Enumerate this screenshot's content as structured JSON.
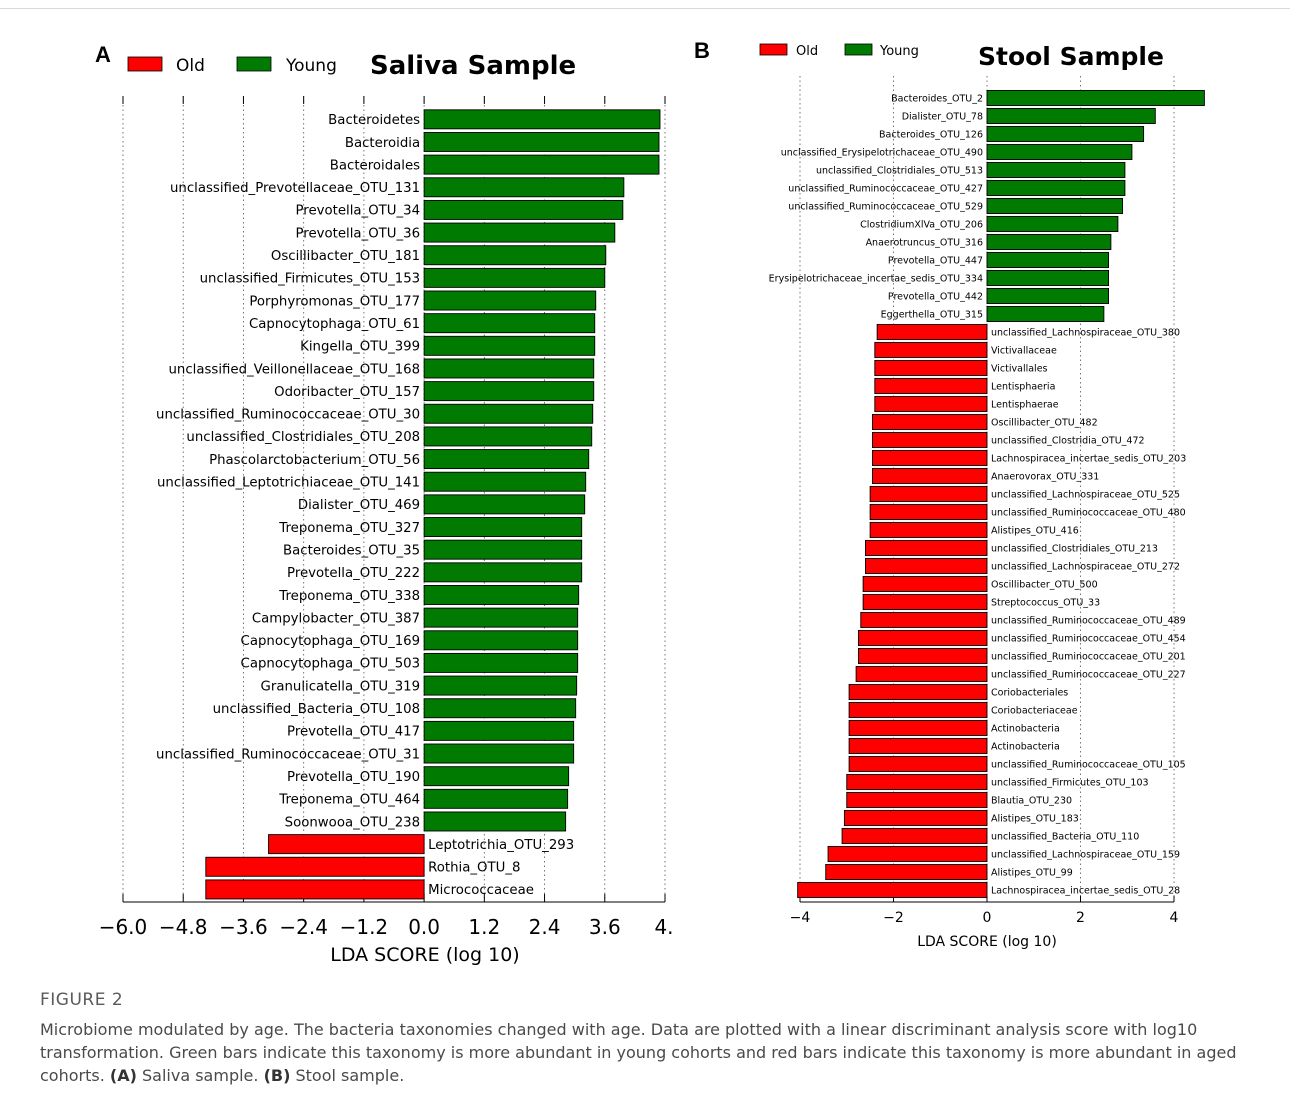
{
  "figure": {
    "label": "FIGURE 2",
    "caption_main": "Microbiome modulated by age. The bacteria taxonomies changed with age. Data are plotted with a linear discriminant analysis score with log10 transformation. Green bars indicate this taxonomy is more abundant in young cohorts and red bars indicate this taxonomy is more abundant in aged cohorts.",
    "caption_a_label": "(A)",
    "caption_a_text": "Saliva sample.",
    "caption_b_label": "(B)",
    "caption_b_text": "Stool sample."
  },
  "colors": {
    "old": "#ff0000",
    "young": "#007a00"
  },
  "chart_data": [
    {
      "type": "bar",
      "orientation": "horizontal",
      "panel": "A",
      "title": "Saliva Sample",
      "xlabel": "LDA SCORE (log 10)",
      "xlim": [
        -6.0,
        4.8
      ],
      "xticks": [
        -6.0,
        -4.8,
        -3.6,
        -2.4,
        -1.2,
        0.0,
        1.2,
        2.4,
        3.6,
        4.8
      ],
      "xtick_labels": [
        "−6.0",
        "−4.8",
        "−3.6",
        "−2.4",
        "−1.2",
        "0.0",
        "1.2",
        "2.4",
        "3.6",
        "4. "
      ],
      "legend": [
        {
          "name": "Old",
          "color": "#ff0000"
        },
        {
          "name": "Young",
          "color": "#007a00"
        }
      ],
      "legend_position": "top-left",
      "grid": "vertical dotted",
      "categories": [
        "Bacteroidetes",
        "Bacteroidia",
        "Bacteroidales",
        "unclassified_Prevotellaceae_OTU_131",
        "Prevotella_OTU_34",
        "Prevotella_OTU_36",
        "Oscillibacter_OTU_181",
        "unclassified_Firmicutes_OTU_153",
        "Porphyromonas_OTU_177",
        "Capnocytophaga_OTU_61",
        "Kingella_OTU_399",
        "unclassified_Veillonellaceae_OTU_168",
        "Odoribacter_OTU_157",
        "unclassified_Ruminococcaceae_OTU_30",
        "unclassified_Clostridiales_OTU_208",
        "Phascolarctobacterium_OTU_56",
        "unclassified_Leptotrichiaceae_OTU_141",
        "Dialister_OTU_469",
        "Treponema_OTU_327",
        "Bacteroides_OTU_35",
        "Prevotella_OTU_222",
        "Treponema_OTU_338",
        "Campylobacter_OTU_387",
        "Capnocytophaga_OTU_169",
        "Capnocytophaga_OTU_503",
        "Granulicatella_OTU_319",
        "unclassified_Bacteria_OTU_108",
        "Prevotella_OTU_417",
        "unclassified_Ruminococcaceae_OTU_31",
        "Prevotella_OTU_190",
        "Treponema_OTU_464",
        "Soonwooa_OTU_238",
        "Leptotrichia_OTU_293",
        "Rothia_OTU_8",
        "Micrococcaceae"
      ],
      "values": [
        4.7,
        4.68,
        4.68,
        3.98,
        3.96,
        3.8,
        3.62,
        3.6,
        3.42,
        3.4,
        3.4,
        3.38,
        3.38,
        3.36,
        3.34,
        3.28,
        3.22,
        3.2,
        3.14,
        3.14,
        3.14,
        3.08,
        3.06,
        3.06,
        3.06,
        3.04,
        3.02,
        2.98,
        2.98,
        2.88,
        2.86,
        2.82,
        -3.1,
        -4.35,
        -4.35
      ],
      "groups": [
        "Young",
        "Young",
        "Young",
        "Young",
        "Young",
        "Young",
        "Young",
        "Young",
        "Young",
        "Young",
        "Young",
        "Young",
        "Young",
        "Young",
        "Young",
        "Young",
        "Young",
        "Young",
        "Young",
        "Young",
        "Young",
        "Young",
        "Young",
        "Young",
        "Young",
        "Young",
        "Young",
        "Young",
        "Young",
        "Young",
        "Young",
        "Young",
        "Old",
        "Old",
        "Old"
      ]
    },
    {
      "type": "bar",
      "orientation": "horizontal",
      "panel": "B",
      "title": "Stool Sample",
      "xlabel": "LDA SCORE (log 10)",
      "xlim": [
        -4.2,
        4.7
      ],
      "xticks": [
        -4,
        -2,
        0,
        2,
        4
      ],
      "xtick_labels": [
        "−4",
        "−2",
        "0",
        "2",
        "4"
      ],
      "legend": [
        {
          "name": "Old",
          "color": "#ff0000"
        },
        {
          "name": "Young",
          "color": "#007a00"
        }
      ],
      "legend_position": "top-left",
      "grid": "vertical dotted",
      "categories": [
        "Bacteroides_OTU_2",
        "Dialister_OTU_78",
        "Bacteroides_OTU_126",
        "unclassified_Erysipelotrichaceae_OTU_490",
        "unclassified_Clostridiales_OTU_513",
        "unclassified_Ruminococcaceae_OTU_427",
        "unclassified_Ruminococcaceae_OTU_529",
        "ClostridiumXlVa_OTU_206",
        "Anaerotruncus_OTU_316",
        "Prevotella_OTU_447",
        "Erysipelotrichaceae_incertae_sedis_OTU_334",
        "Prevotella_OTU_442",
        "Eggerthella_OTU_315",
        "unclassified_Lachnospiraceae_OTU_380",
        "Victivallaceae",
        "Victivallales",
        "Lentisphaeria",
        "Lentisphaerae",
        "Oscillibacter_OTU_482",
        "unclassified_Clostridia_OTU_472",
        "Lachnospiracea_incertae_sedis_OTU_203",
        "Anaerovorax_OTU_331",
        "unclassified_Lachnospiraceae_OTU_525",
        "unclassified_Ruminococcaceae_OTU_480",
        "Alistipes_OTU_416",
        "unclassified_Clostridiales_OTU_213",
        "unclassified_Lachnospiraceae_OTU_272",
        "Oscillibacter_OTU_500",
        "Streptococcus_OTU_33",
        "unclassified_Ruminococcaceae_OTU_489",
        "unclassified_Ruminococcaceae_OTU_454",
        "unclassified_Ruminococcaceae_OTU_201",
        "unclassified_Ruminococcaceae_OTU_227",
        "Coriobacteriales",
        "Coriobacteriaceae",
        "Actinobacteria",
        "Actinobacteria",
        "unclassified_Ruminococcaceae_OTU_105",
        "unclassified_Firmicutes_OTU_103",
        "Blautia_OTU_230",
        "Alistipes_OTU_183",
        "unclassified_Bacteria_OTU_110",
        "unclassified_Lachnospiraceae_OTU_159",
        "Alistipes_OTU_99",
        "Lachnospiracea_incertae_sedis_OTU_28"
      ],
      "values": [
        4.65,
        3.6,
        3.35,
        3.1,
        2.95,
        2.95,
        2.9,
        2.8,
        2.65,
        2.6,
        2.6,
        2.6,
        2.5,
        -2.35,
        -2.4,
        -2.4,
        -2.4,
        -2.4,
        -2.45,
        -2.45,
        -2.45,
        -2.45,
        -2.5,
        -2.5,
        -2.5,
        -2.6,
        -2.6,
        -2.65,
        -2.65,
        -2.7,
        -2.75,
        -2.75,
        -2.8,
        -2.95,
        -2.95,
        -2.95,
        -2.95,
        -2.95,
        -3.0,
        -3.0,
        -3.05,
        -3.1,
        -3.4,
        -3.45,
        -4.05
      ],
      "groups": [
        "Young",
        "Young",
        "Young",
        "Young",
        "Young",
        "Young",
        "Young",
        "Young",
        "Young",
        "Young",
        "Young",
        "Young",
        "Young",
        "Old",
        "Old",
        "Old",
        "Old",
        "Old",
        "Old",
        "Old",
        "Old",
        "Old",
        "Old",
        "Old",
        "Old",
        "Old",
        "Old",
        "Old",
        "Old",
        "Old",
        "Old",
        "Old",
        "Old",
        "Old",
        "Old",
        "Old",
        "Old",
        "Old",
        "Old",
        "Old",
        "Old",
        "Old",
        "Old",
        "Old",
        "Old"
      ]
    }
  ]
}
